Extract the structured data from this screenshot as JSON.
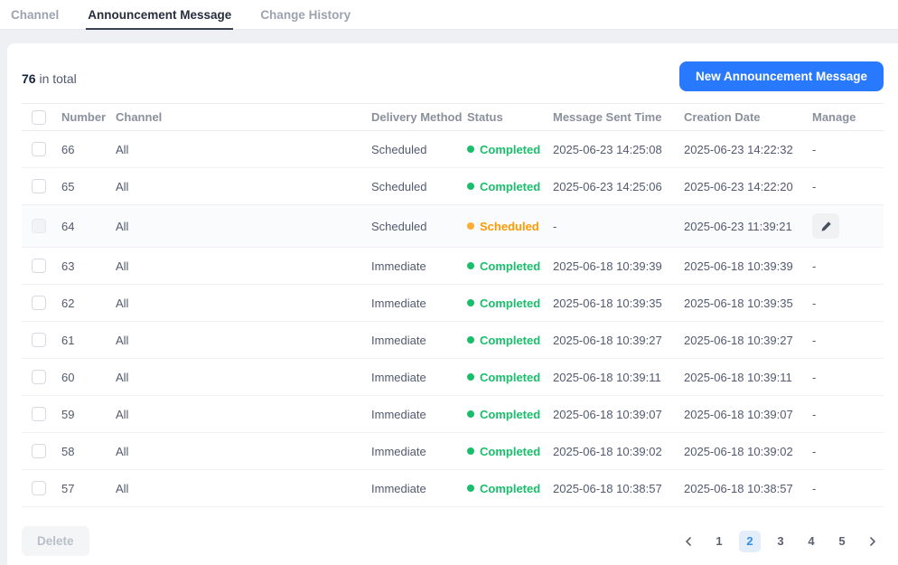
{
  "tabs": [
    {
      "label": "Channel",
      "active": false
    },
    {
      "label": "Announcement Message",
      "active": true
    },
    {
      "label": "Change History",
      "active": false
    }
  ],
  "summary": {
    "count": "76",
    "label": "in total"
  },
  "toolbar": {
    "new_button_label": "New Announcement Message"
  },
  "table": {
    "headers": [
      "Number",
      "Channel",
      "Delivery Method",
      "Status",
      "Message Sent Time",
      "Creation Date",
      "Manage"
    ],
    "rows": [
      {
        "number": "66",
        "channel": "All",
        "delivery": "Scheduled",
        "status": "Completed",
        "status_type": "success",
        "sent": "2025-06-23 14:25:08",
        "created": "2025-06-23 14:22:32",
        "manage": "-",
        "shaded": false,
        "checkbox_disabled": false
      },
      {
        "number": "65",
        "channel": "All",
        "delivery": "Scheduled",
        "status": "Completed",
        "status_type": "success",
        "sent": "2025-06-23 14:25:06",
        "created": "2025-06-23 14:22:20",
        "manage": "-",
        "shaded": false,
        "checkbox_disabled": false
      },
      {
        "number": "64",
        "channel": "All",
        "delivery": "Scheduled",
        "status": "Scheduled",
        "status_type": "warning",
        "sent": "-",
        "created": "2025-06-23 11:39:21",
        "manage": "edit",
        "shaded": true,
        "checkbox_disabled": true
      },
      {
        "number": "63",
        "channel": "All",
        "delivery": "Immediate",
        "status": "Completed",
        "status_type": "success",
        "sent": "2025-06-18 10:39:39",
        "created": "2025-06-18 10:39:39",
        "manage": "-",
        "shaded": false,
        "checkbox_disabled": false
      },
      {
        "number": "62",
        "channel": "All",
        "delivery": "Immediate",
        "status": "Completed",
        "status_type": "success",
        "sent": "2025-06-18 10:39:35",
        "created": "2025-06-18 10:39:35",
        "manage": "-",
        "shaded": false,
        "checkbox_disabled": false
      },
      {
        "number": "61",
        "channel": "All",
        "delivery": "Immediate",
        "status": "Completed",
        "status_type": "success",
        "sent": "2025-06-18 10:39:27",
        "created": "2025-06-18 10:39:27",
        "manage": "-",
        "shaded": false,
        "checkbox_disabled": false
      },
      {
        "number": "60",
        "channel": "All",
        "delivery": "Immediate",
        "status": "Completed",
        "status_type": "success",
        "sent": "2025-06-18 10:39:11",
        "created": "2025-06-18 10:39:11",
        "manage": "-",
        "shaded": false,
        "checkbox_disabled": false
      },
      {
        "number": "59",
        "channel": "All",
        "delivery": "Immediate",
        "status": "Completed",
        "status_type": "success",
        "sent": "2025-06-18 10:39:07",
        "created": "2025-06-18 10:39:07",
        "manage": "-",
        "shaded": false,
        "checkbox_disabled": false
      },
      {
        "number": "58",
        "channel": "All",
        "delivery": "Immediate",
        "status": "Completed",
        "status_type": "success",
        "sent": "2025-06-18 10:39:02",
        "created": "2025-06-18 10:39:02",
        "manage": "-",
        "shaded": false,
        "checkbox_disabled": false
      },
      {
        "number": "57",
        "channel": "All",
        "delivery": "Immediate",
        "status": "Completed",
        "status_type": "success",
        "sent": "2025-06-18 10:38:57",
        "created": "2025-06-18 10:38:57",
        "manage": "-",
        "shaded": false,
        "checkbox_disabled": false
      }
    ]
  },
  "footer": {
    "delete_label": "Delete",
    "pagination": {
      "pages": [
        "1",
        "2",
        "3",
        "4",
        "5"
      ],
      "active": "2"
    }
  },
  "colors": {
    "primary_blue": "#2979ff",
    "success_green": "#19be6b",
    "warning_orange": "#ff9900",
    "active_tab_underline": "#39404f",
    "active_page_bg": "#e4eefb",
    "active_page_text": "#2d8cf0"
  }
}
